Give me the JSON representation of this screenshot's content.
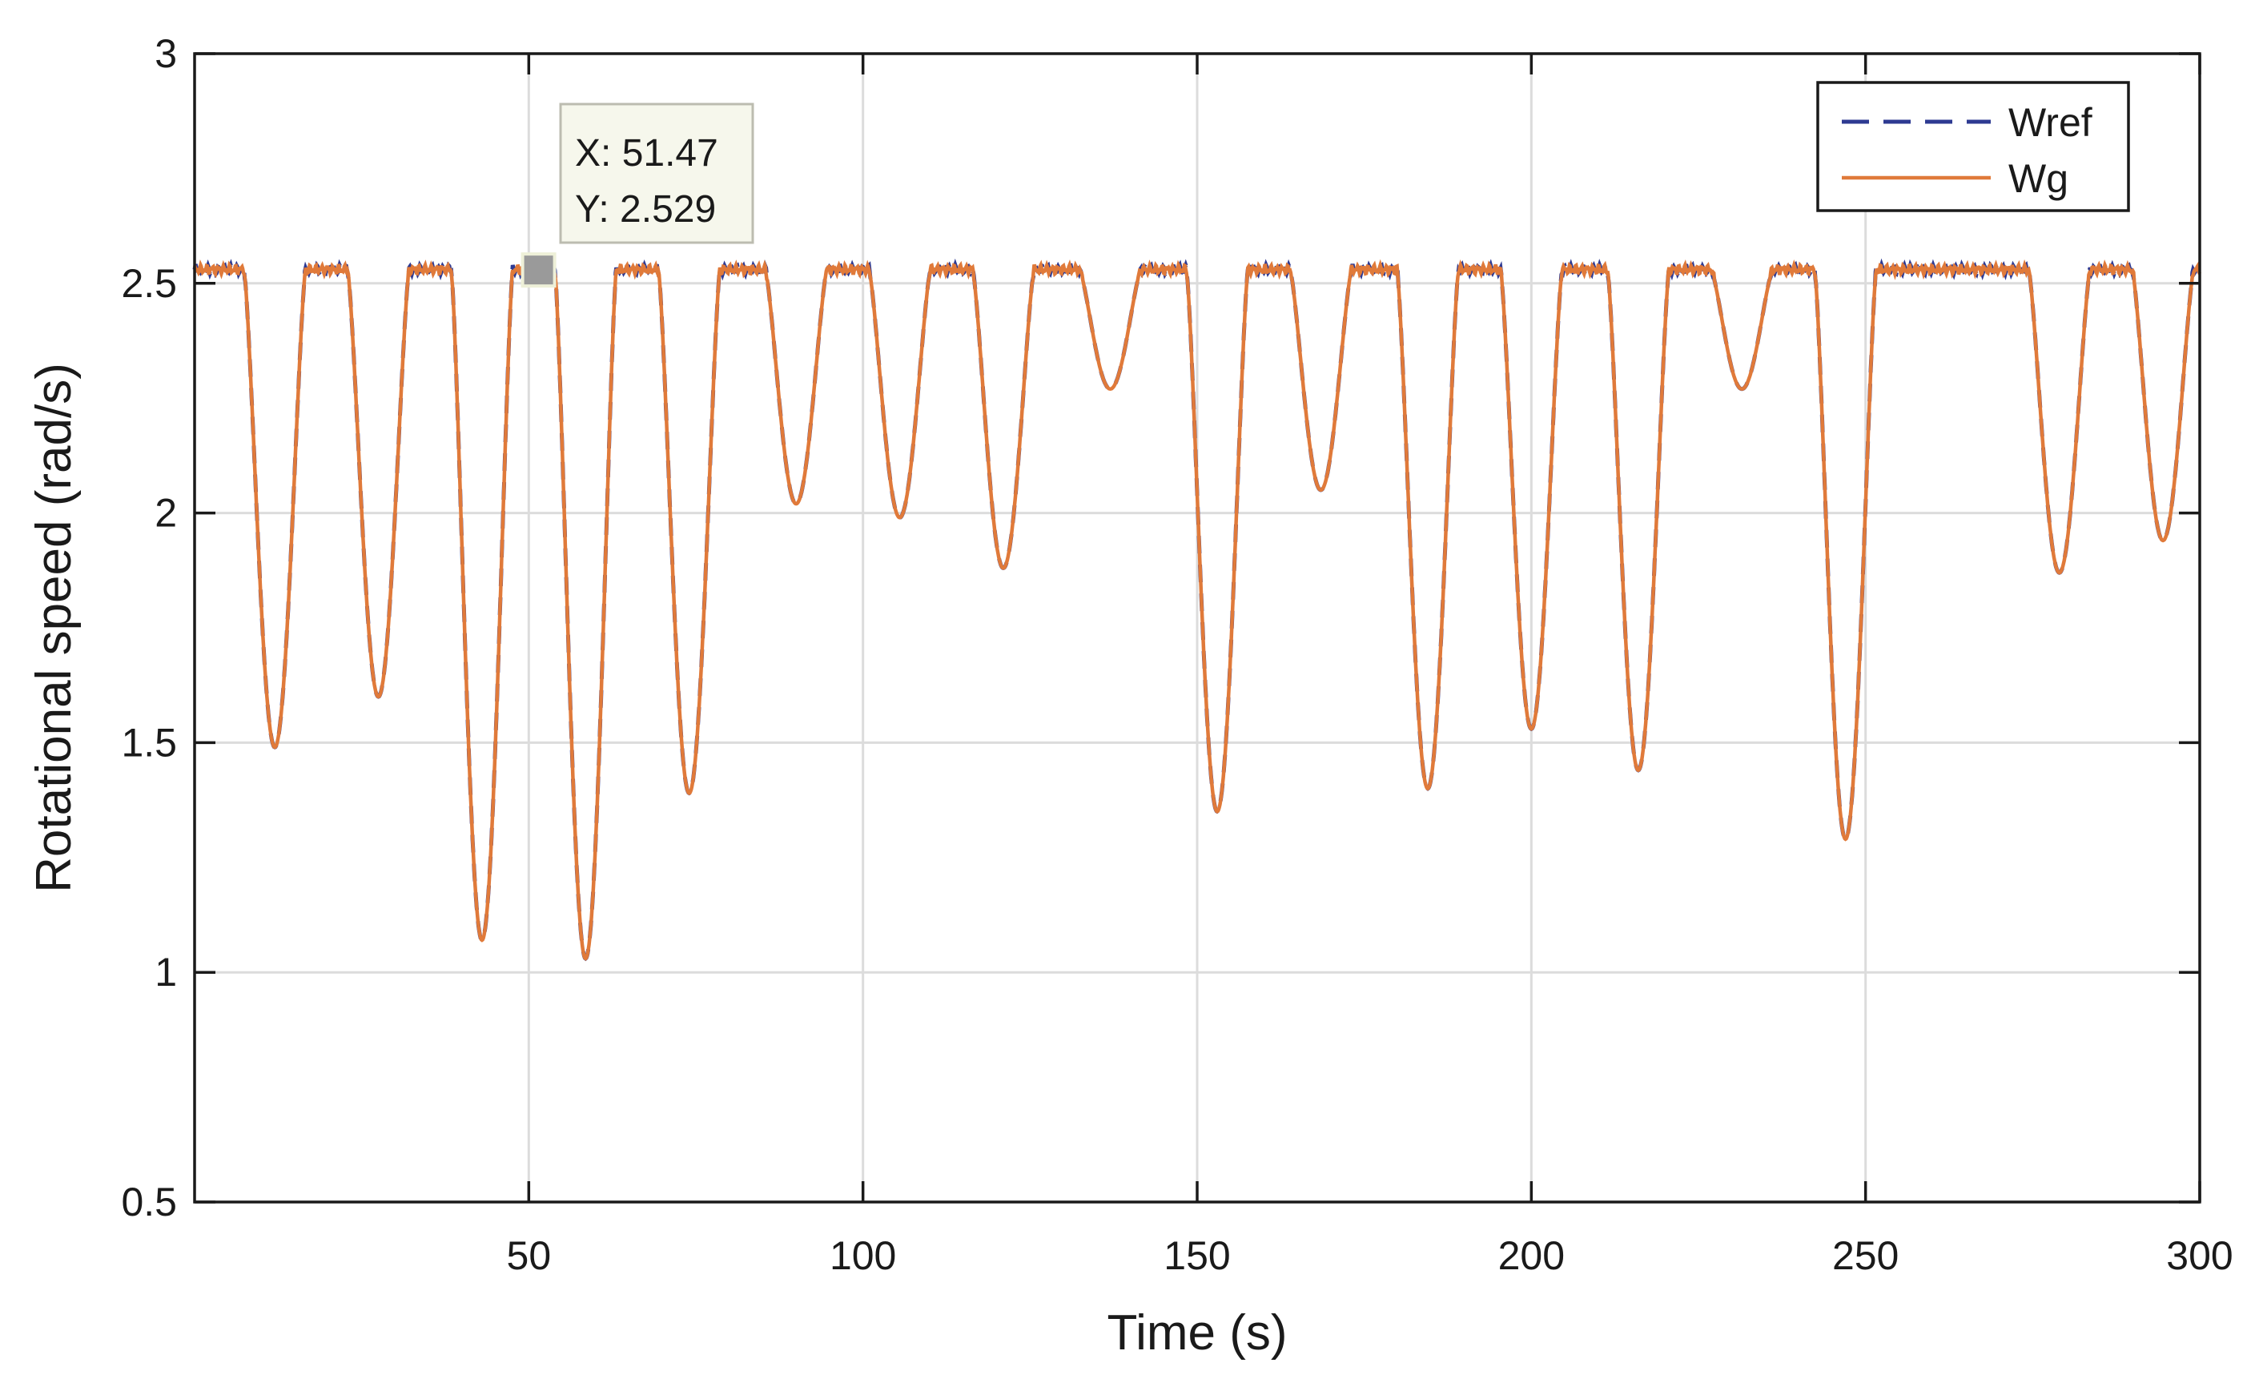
{
  "chart_data": {
    "type": "line",
    "title": "",
    "xlabel": "Time (s)",
    "ylabel": "Rotational speed (rad/s)",
    "xlim": [
      0,
      300
    ],
    "ylim": [
      0.5,
      3
    ],
    "xticks": [
      50,
      100,
      150,
      200,
      250,
      300
    ],
    "xtick_labels": [
      "50",
      "100",
      "150",
      "200",
      "250",
      "300"
    ],
    "yticks": [
      0.5,
      1,
      1.5,
      2,
      2.5,
      3
    ],
    "ytick_labels": [
      "0.5",
      "1",
      "1.5",
      "2",
      "2.5",
      "3"
    ],
    "grid": true,
    "baseline": 2.53,
    "dips": [
      {
        "t": 12,
        "min": 1.49
      },
      {
        "t": 27.5,
        "min": 1.6
      },
      {
        "t": 43,
        "min": 1.07
      },
      {
        "t": 58.5,
        "min": 1.03
      },
      {
        "t": 74,
        "min": 1.39
      },
      {
        "t": 90,
        "min": 2.02
      },
      {
        "t": 105.5,
        "min": 1.99
      },
      {
        "t": 121,
        "min": 1.88
      },
      {
        "t": 137,
        "min": 2.27
      },
      {
        "t": 153,
        "min": 1.35
      },
      {
        "t": 168.5,
        "min": 2.05
      },
      {
        "t": 184.5,
        "min": 1.4
      },
      {
        "t": 200,
        "min": 1.53
      },
      {
        "t": 216,
        "min": 1.44
      },
      {
        "t": 231.5,
        "min": 2.27
      },
      {
        "t": 247,
        "min": 1.29
      },
      {
        "t": 279,
        "min": 1.87
      },
      {
        "t": 294.5,
        "min": 1.94
      }
    ],
    "series": [
      {
        "name": "Wref",
        "color": "#2e3a92",
        "style": "dashed"
      },
      {
        "name": "Wg",
        "color": "#e07a3a",
        "style": "solid"
      }
    ],
    "legend": {
      "position": "top-right",
      "entries": [
        "Wref",
        "Wg"
      ]
    },
    "datatip": {
      "x_label": "X: 51.47",
      "y_label": "Y: 2.529",
      "x": 51.47,
      "y": 2.529
    }
  }
}
